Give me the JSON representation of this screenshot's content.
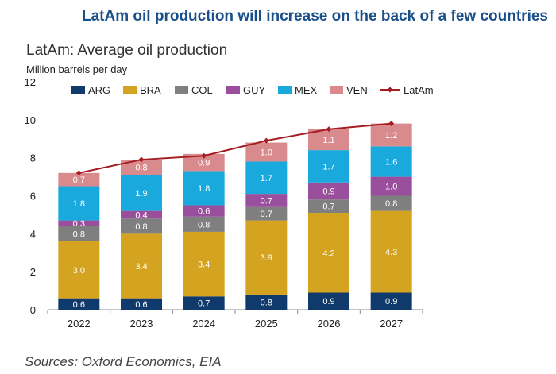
{
  "title": "LatAm oil production will increase on the back of a few countries",
  "source": "Sources: Oxford Economics, EIA",
  "chart_data": {
    "type": "bar",
    "stacked": true,
    "title": "LatAm: Average oil production",
    "ylabel": "Million barrels per day",
    "xlabel": "",
    "ylim": [
      0,
      12
    ],
    "yticks": [
      "0",
      "2",
      "4",
      "6",
      "8",
      "10",
      "12"
    ],
    "grid": false,
    "legend_position": "top",
    "categories": [
      "2022",
      "2023",
      "2024",
      "2025",
      "2026",
      "2027"
    ],
    "series": [
      {
        "name": "ARG",
        "color": "#0f3a6b",
        "values": [
          0.6,
          0.6,
          0.7,
          0.8,
          0.9,
          0.9
        ]
      },
      {
        "name": "BRA",
        "color": "#d4a31f",
        "values": [
          3.0,
          3.4,
          3.4,
          3.9,
          4.2,
          4.3
        ]
      },
      {
        "name": "COL",
        "color": "#7f7f7f",
        "values": [
          0.8,
          0.8,
          0.8,
          0.7,
          0.7,
          0.8
        ]
      },
      {
        "name": "GUY",
        "color": "#9a4f9c",
        "values": [
          0.3,
          0.4,
          0.6,
          0.7,
          0.9,
          1.0
        ]
      },
      {
        "name": "MEX",
        "color": "#1aa9dd",
        "values": [
          1.8,
          1.9,
          1.8,
          1.7,
          1.7,
          1.6
        ]
      },
      {
        "name": "VEN",
        "color": "#d98a8c",
        "values": [
          0.7,
          0.8,
          0.9,
          1.0,
          1.1,
          1.2
        ]
      }
    ],
    "line": {
      "name": "LatAm",
      "color": "#a31d22",
      "values": [
        7.2,
        7.9,
        8.1,
        8.9,
        9.5,
        9.8
      ]
    }
  }
}
